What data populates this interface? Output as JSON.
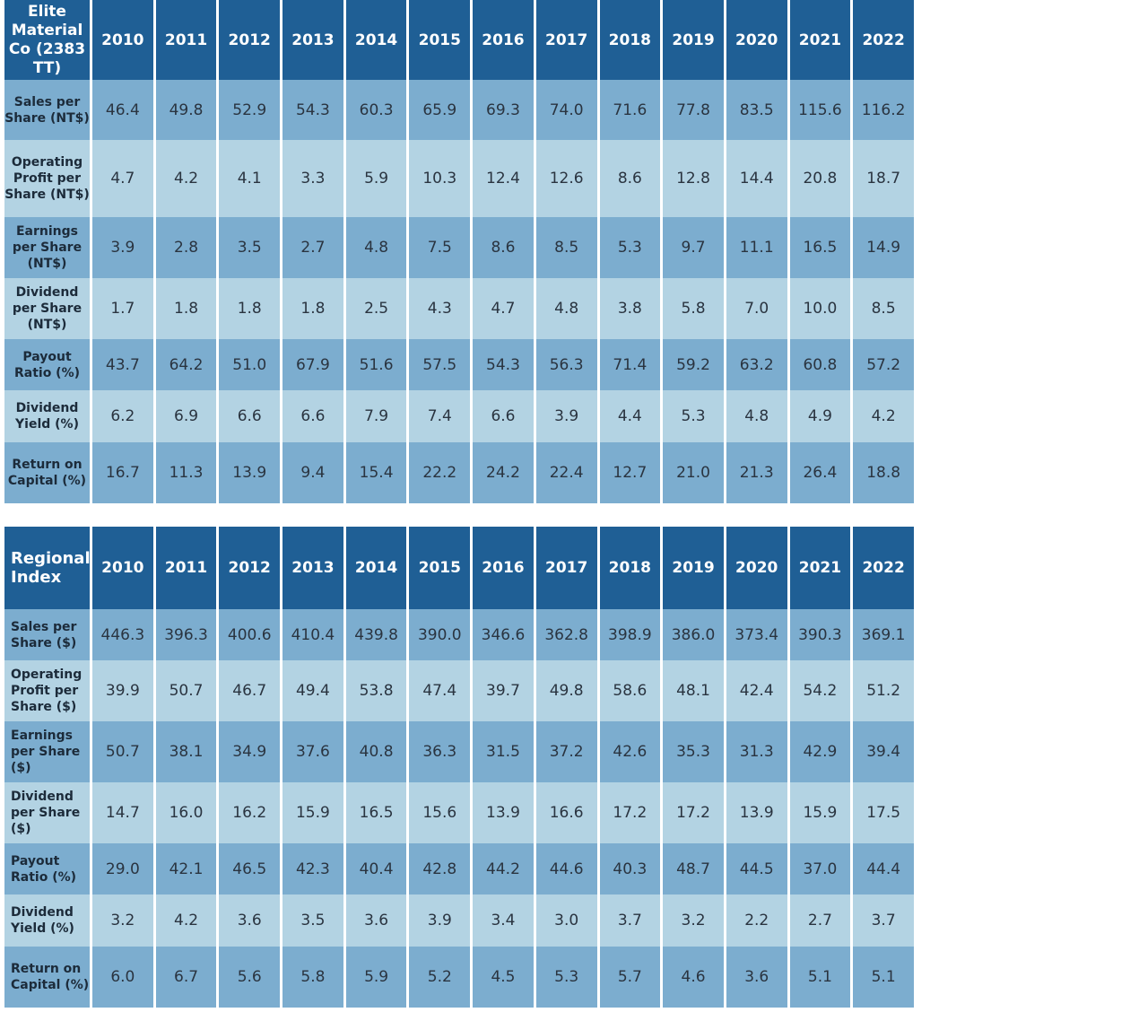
{
  "table1": {
    "corner": "Elite Material Co (2383 TT)",
    "years": [
      "2010",
      "2011",
      "2012",
      "2013",
      "2014",
      "2015",
      "2016",
      "2017",
      "2018",
      "2019",
      "2020",
      "2021",
      "2022"
    ],
    "rows": [
      {
        "label": "Sales per Share (NT$)",
        "values": [
          "46.4",
          "49.8",
          "52.9",
          "54.3",
          "60.3",
          "65.9",
          "69.3",
          "74.0",
          "71.6",
          "77.8",
          "83.5",
          "115.6",
          "116.2"
        ]
      },
      {
        "label": "Operating Profit per Share (NT$)",
        "values": [
          "4.7",
          "4.2",
          "4.1",
          "3.3",
          "5.9",
          "10.3",
          "12.4",
          "12.6",
          "8.6",
          "12.8",
          "14.4",
          "20.8",
          "18.7"
        ]
      },
      {
        "label": "Earnings per Share (NT$)",
        "values": [
          "3.9",
          "2.8",
          "3.5",
          "2.7",
          "4.8",
          "7.5",
          "8.6",
          "8.5",
          "5.3",
          "9.7",
          "11.1",
          "16.5",
          "14.9"
        ]
      },
      {
        "label": "Dividend per Share (NT$)",
        "values": [
          "1.7",
          "1.8",
          "1.8",
          "1.8",
          "2.5",
          "4.3",
          "4.7",
          "4.8",
          "3.8",
          "5.8",
          "7.0",
          "10.0",
          "8.5"
        ]
      },
      {
        "label": "Payout Ratio (%)",
        "values": [
          "43.7",
          "64.2",
          "51.0",
          "67.9",
          "51.6",
          "57.5",
          "54.3",
          "56.3",
          "71.4",
          "59.2",
          "63.2",
          "60.8",
          "57.2"
        ]
      },
      {
        "label": "Dividend Yield (%)",
        "values": [
          "6.2",
          "6.9",
          "6.6",
          "6.6",
          "7.9",
          "7.4",
          "6.6",
          "3.9",
          "4.4",
          "5.3",
          "4.8",
          "4.9",
          "4.2"
        ]
      },
      {
        "label": "Return on Capital (%)",
        "values": [
          "16.7",
          "11.3",
          "13.9",
          "9.4",
          "15.4",
          "22.2",
          "24.2",
          "22.4",
          "12.7",
          "21.0",
          "21.3",
          "26.4",
          "18.8"
        ]
      }
    ]
  },
  "table2": {
    "corner": "Regional Index",
    "years": [
      "2010",
      "2011",
      "2012",
      "2013",
      "2014",
      "2015",
      "2016",
      "2017",
      "2018",
      "2019",
      "2020",
      "2021",
      "2022"
    ],
    "rows": [
      {
        "label": "Sales per Share ($)",
        "values": [
          "446.3",
          "396.3",
          "400.6",
          "410.4",
          "439.8",
          "390.0",
          "346.6",
          "362.8",
          "398.9",
          "386.0",
          "373.4",
          "390.3",
          "369.1"
        ]
      },
      {
        "label": "Operating Profit per Share ($)",
        "values": [
          "39.9",
          "50.7",
          "46.7",
          "49.4",
          "53.8",
          "47.4",
          "39.7",
          "49.8",
          "58.6",
          "48.1",
          "42.4",
          "54.2",
          "51.2"
        ]
      },
      {
        "label": "Earnings per Share ($)",
        "values": [
          "50.7",
          "38.1",
          "34.9",
          "37.6",
          "40.8",
          "36.3",
          "31.5",
          "37.2",
          "42.6",
          "35.3",
          "31.3",
          "42.9",
          "39.4"
        ]
      },
      {
        "label": "Dividend per Share ($)",
        "values": [
          "14.7",
          "16.0",
          "16.2",
          "15.9",
          "16.5",
          "15.6",
          "13.9",
          "16.6",
          "17.2",
          "17.2",
          "13.9",
          "15.9",
          "17.5"
        ]
      },
      {
        "label": "Payout Ratio (%)",
        "values": [
          "29.0",
          "42.1",
          "46.5",
          "42.3",
          "40.4",
          "42.8",
          "44.2",
          "44.6",
          "40.3",
          "48.7",
          "44.5",
          "37.0",
          "44.4"
        ]
      },
      {
        "label": "Dividend Yield (%)",
        "values": [
          "3.2",
          "4.2",
          "3.6",
          "3.5",
          "3.6",
          "3.9",
          "3.4",
          "3.0",
          "3.7",
          "3.2",
          "2.2",
          "2.7",
          "3.7"
        ]
      },
      {
        "label": "Return on Capital (%)",
        "values": [
          "6.0",
          "6.7",
          "5.6",
          "5.8",
          "5.9",
          "5.2",
          "4.5",
          "5.3",
          "5.7",
          "4.6",
          "3.6",
          "5.1",
          "5.1"
        ]
      }
    ]
  }
}
